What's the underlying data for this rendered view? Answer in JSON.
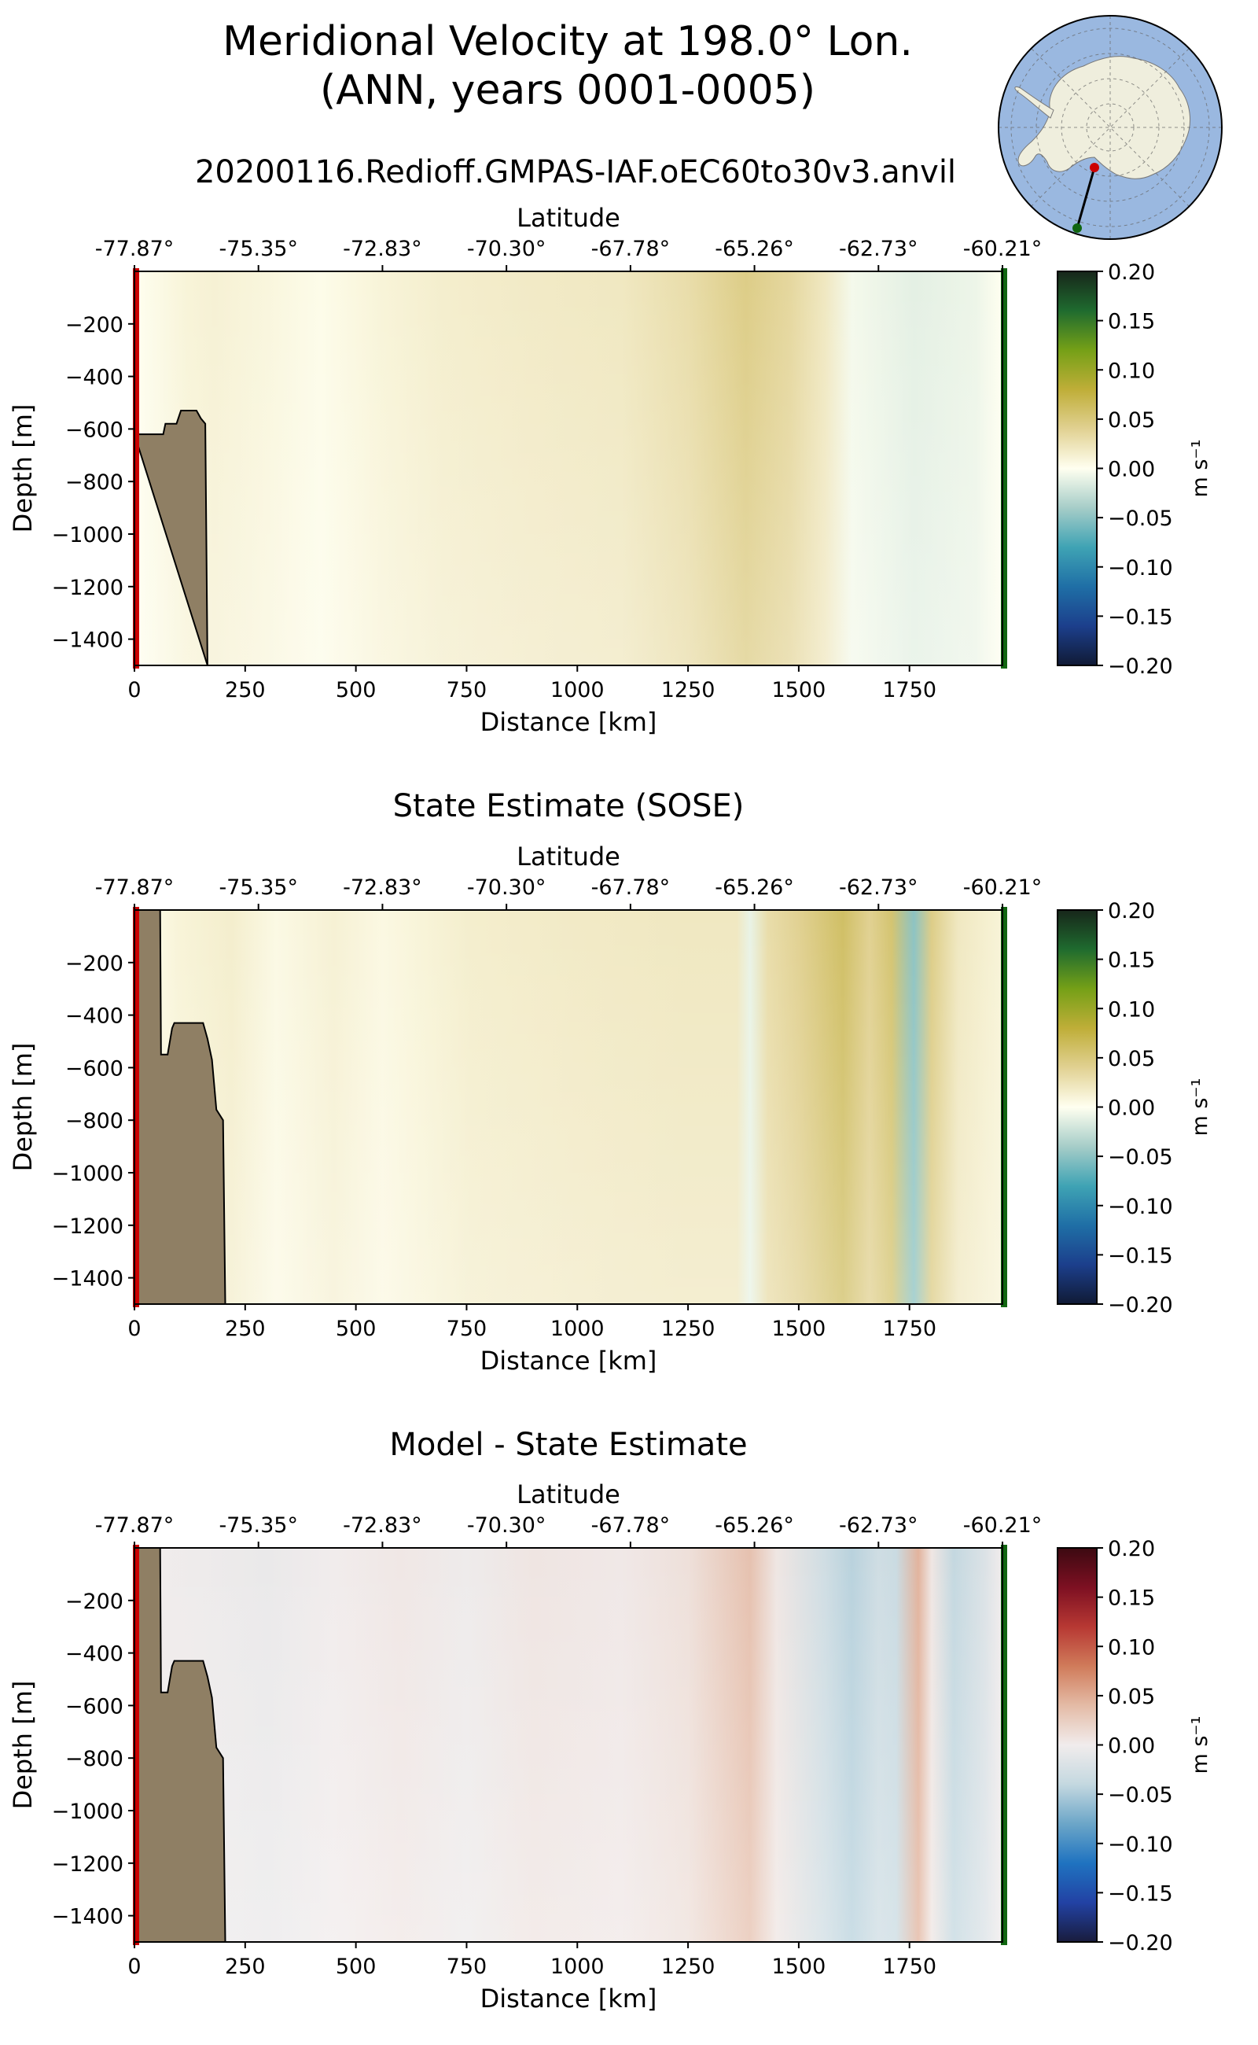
{
  "figure": {
    "title_line1": "Meridional Velocity at 198.0° Lon.",
    "title_line2": "(ANN, years 0001-0005)",
    "subtitle": "20200116.Redioff.GMPAS-IAF.oEC60to30v3.anvil"
  },
  "colors": {
    "topography": "#8f7f64",
    "start_marker": "#cc0000",
    "end_marker": "#116611",
    "map_ocean": "#9ab8e0",
    "map_land": "#efeedd"
  },
  "chart_data": [
    {
      "type": "heatmap",
      "title": "",
      "xlabel": "Distance [km]",
      "ylabel": "Depth [m]",
      "top_xlabel": "Latitude",
      "xlim": [
        0,
        1960
      ],
      "ylim": [
        -1500,
        0
      ],
      "x_ticks": [
        0,
        250,
        500,
        750,
        1000,
        1250,
        1500,
        1750
      ],
      "y_ticks": [
        -200,
        -400,
        -600,
        -800,
        -1000,
        -1200,
        -1400
      ],
      "lat_ticks": [
        "-77.87°",
        "-75.35°",
        "-72.83°",
        "-70.30°",
        "-67.78°",
        "-65.26°",
        "-62.73°",
        "-60.21°"
      ],
      "colorbar": {
        "label": "m s⁻¹",
        "ticks": [
          0.2,
          0.15,
          0.1,
          0.05,
          0.0,
          -0.05,
          -0.1,
          -0.15,
          -0.2
        ],
        "range": [
          -0.2,
          0.2
        ],
        "cmap": "delta"
      },
      "topography_km_depth": [
        [
          0,
          -620
        ],
        [
          65,
          -620
        ],
        [
          70,
          -580
        ],
        [
          95,
          -580
        ],
        [
          105,
          -530
        ],
        [
          140,
          -530
        ],
        [
          150,
          -560
        ],
        [
          160,
          -580
        ],
        [
          165,
          -1500
        ]
      ],
      "value_profile_km_ms": [
        [
          0,
          0.0
        ],
        [
          60,
          0.005
        ],
        [
          120,
          0.01
        ],
        [
          180,
          0.012
        ],
        [
          300,
          0.008
        ],
        [
          420,
          0.003
        ],
        [
          560,
          0.01
        ],
        [
          700,
          0.015
        ],
        [
          900,
          0.018
        ],
        [
          1100,
          0.02
        ],
        [
          1250,
          0.03
        ],
        [
          1380,
          0.045
        ],
        [
          1480,
          0.035
        ],
        [
          1560,
          0.02
        ],
        [
          1620,
          -0.005
        ],
        [
          1760,
          -0.012
        ],
        [
          1900,
          -0.008
        ],
        [
          1960,
          0.0
        ]
      ]
    },
    {
      "type": "heatmap",
      "title": "State Estimate (SOSE)",
      "xlabel": "Distance [km]",
      "ylabel": "Depth [m]",
      "top_xlabel": "Latitude",
      "xlim": [
        0,
        1960
      ],
      "ylim": [
        -1500,
        0
      ],
      "x_ticks": [
        0,
        250,
        500,
        750,
        1000,
        1250,
        1500,
        1750
      ],
      "y_ticks": [
        -200,
        -400,
        -600,
        -800,
        -1000,
        -1200,
        -1400
      ],
      "lat_ticks": [
        "-77.87°",
        "-75.35°",
        "-72.83°",
        "-70.30°",
        "-67.78°",
        "-65.26°",
        "-62.73°",
        "-60.21°"
      ],
      "colorbar": {
        "label": "m s⁻¹",
        "ticks": [
          0.2,
          0.15,
          0.1,
          0.05,
          0.0,
          -0.05,
          -0.1,
          -0.15,
          -0.2
        ],
        "range": [
          -0.2,
          0.2
        ],
        "cmap": "delta"
      },
      "topography_km_depth": [
        [
          0,
          -1500
        ],
        [
          0,
          0
        ],
        [
          58,
          0
        ],
        [
          60,
          -550
        ],
        [
          75,
          -550
        ],
        [
          85,
          -450
        ],
        [
          90,
          -430
        ],
        [
          155,
          -430
        ],
        [
          165,
          -490
        ],
        [
          175,
          -570
        ],
        [
          185,
          -760
        ],
        [
          200,
          -800
        ],
        [
          205,
          -1500
        ]
      ],
      "value_profile_km_ms": [
        [
          0,
          0.0
        ],
        [
          100,
          0.01
        ],
        [
          220,
          0.015
        ],
        [
          320,
          0.005
        ],
        [
          450,
          0.012
        ],
        [
          560,
          0.006
        ],
        [
          650,
          0.01
        ],
        [
          760,
          0.015
        ],
        [
          1000,
          0.018
        ],
        [
          1250,
          0.02
        ],
        [
          1360,
          0.02
        ],
        [
          1390,
          -0.01
        ],
        [
          1430,
          0.03
        ],
        [
          1500,
          0.04
        ],
        [
          1600,
          0.06
        ],
        [
          1660,
          0.04
        ],
        [
          1710,
          0.055
        ],
        [
          1760,
          -0.05
        ],
        [
          1800,
          0.045
        ],
        [
          1860,
          0.02
        ],
        [
          1960,
          0.01
        ]
      ]
    },
    {
      "type": "heatmap",
      "title": "Model - State Estimate",
      "xlabel": "Distance [km]",
      "ylabel": "Depth [m]",
      "top_xlabel": "Latitude",
      "xlim": [
        0,
        1960
      ],
      "ylim": [
        -1500,
        0
      ],
      "x_ticks": [
        0,
        250,
        500,
        750,
        1000,
        1250,
        1500,
        1750
      ],
      "y_ticks": [
        -200,
        -400,
        -600,
        -800,
        -1000,
        -1200,
        -1400
      ],
      "lat_ticks": [
        "-77.87°",
        "-75.35°",
        "-72.83°",
        "-70.30°",
        "-67.78°",
        "-65.26°",
        "-62.73°",
        "-60.21°"
      ],
      "colorbar": {
        "label": "m s⁻¹",
        "ticks": [
          0.2,
          0.15,
          0.1,
          0.05,
          0.0,
          -0.05,
          -0.1,
          -0.15,
          -0.2
        ],
        "range": [
          -0.2,
          0.2
        ],
        "cmap": "balance"
      },
      "topography_km_depth": [
        [
          0,
          -1500
        ],
        [
          0,
          0
        ],
        [
          58,
          0
        ],
        [
          60,
          -550
        ],
        [
          75,
          -550
        ],
        [
          85,
          -450
        ],
        [
          90,
          -430
        ],
        [
          155,
          -430
        ],
        [
          165,
          -490
        ],
        [
          175,
          -570
        ],
        [
          185,
          -760
        ],
        [
          200,
          -800
        ],
        [
          205,
          -1500
        ]
      ],
      "value_profile_km_ms": [
        [
          0,
          0.0
        ],
        [
          150,
          -0.003
        ],
        [
          300,
          -0.006
        ],
        [
          450,
          0.0
        ],
        [
          600,
          0.004
        ],
        [
          750,
          -0.003
        ],
        [
          900,
          0.006
        ],
        [
          1100,
          0.003
        ],
        [
          1250,
          0.01
        ],
        [
          1390,
          0.035
        ],
        [
          1450,
          0.005
        ],
        [
          1560,
          -0.03
        ],
        [
          1620,
          -0.045
        ],
        [
          1680,
          -0.03
        ],
        [
          1720,
          -0.035
        ],
        [
          1770,
          0.045
        ],
        [
          1800,
          0.005
        ],
        [
          1850,
          -0.04
        ],
        [
          1920,
          -0.02
        ],
        [
          1960,
          0.0
        ]
      ]
    }
  ]
}
